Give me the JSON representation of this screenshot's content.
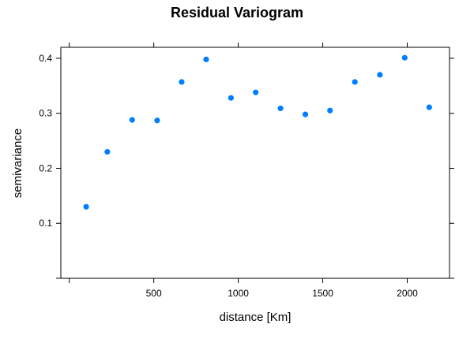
{
  "chart_data": {
    "type": "scatter",
    "title": "Residual Variogram",
    "xlabel": "distance [Km]",
    "ylabel": "semivariance",
    "xlim": [
      -50,
      2250
    ],
    "ylim": [
      0,
      0.42
    ],
    "xticks": [
      0,
      500,
      1000,
      1500,
      2000
    ],
    "xtick_labels": [
      "",
      "500",
      "1000",
      "1500",
      "2000"
    ],
    "yticks": [
      0.0,
      0.1,
      0.2,
      0.3,
      0.4
    ],
    "ytick_labels": [
      "",
      "0.1",
      "0.2",
      "0.3",
      "0.4"
    ],
    "grid": false,
    "point_color": "#0080ff",
    "series": [
      {
        "x": [
          100,
          225,
          372,
          520,
          665,
          810,
          957,
          1103,
          1250,
          1397,
          1543,
          1690,
          1838,
          1985,
          2130
        ],
        "y": [
          0.13,
          0.23,
          0.288,
          0.287,
          0.357,
          0.398,
          0.328,
          0.338,
          0.309,
          0.298,
          0.305,
          0.357,
          0.37,
          0.401,
          0.311
        ]
      }
    ]
  }
}
